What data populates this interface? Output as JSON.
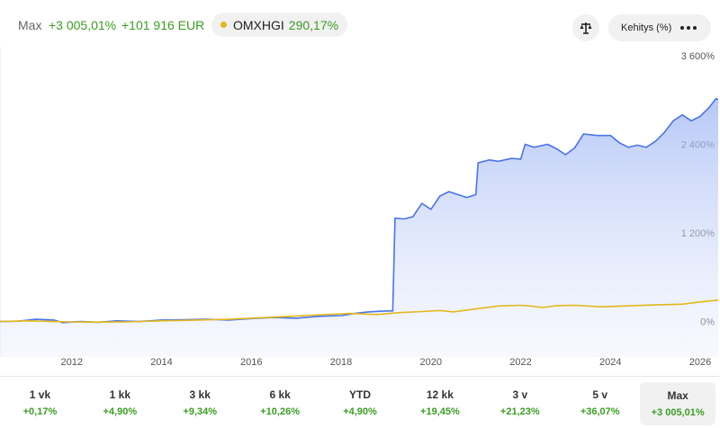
{
  "header": {
    "period_label": "Max",
    "return_pct": "+3 005,01%",
    "return_eur": "+101 916 EUR",
    "benchmark": {
      "name": "OMXHGI",
      "value": "290,17%",
      "color": "#e3b81c"
    },
    "scale_icon": "balance-scale-icon",
    "mode_label": "Kehitys (%)",
    "more_icon": "more-dots-icon"
  },
  "chart_data": {
    "type": "line",
    "ylabels": [
      "3 600%",
      "2 400%",
      "1 200%",
      "0%"
    ],
    "xlabels": [
      "2012",
      "2014",
      "2016",
      "2018",
      "2020",
      "2022",
      "2024",
      "2026"
    ],
    "ylim": [
      -480,
      3600
    ],
    "xlim": [
      2010.4,
      2026.4
    ],
    "grid": false,
    "series": [
      {
        "name": "portfolio",
        "color": "#4a74e8",
        "fill": true,
        "points": [
          [
            2010.4,
            0
          ],
          [
            2010.8,
            5
          ],
          [
            2011.2,
            30
          ],
          [
            2011.6,
            20
          ],
          [
            2011.8,
            -15
          ],
          [
            2012.2,
            0
          ],
          [
            2012.6,
            -10
          ],
          [
            2013.0,
            10
          ],
          [
            2013.5,
            0
          ],
          [
            2014.0,
            20
          ],
          [
            2014.5,
            25
          ],
          [
            2015.0,
            30
          ],
          [
            2015.5,
            20
          ],
          [
            2016.0,
            40
          ],
          [
            2016.5,
            55
          ],
          [
            2017.0,
            45
          ],
          [
            2017.5,
            70
          ],
          [
            2018.0,
            80
          ],
          [
            2018.3,
            110
          ],
          [
            2018.6,
            130
          ],
          [
            2018.9,
            140
          ],
          [
            2019.15,
            145
          ],
          [
            2019.2,
            1400
          ],
          [
            2019.4,
            1390
          ],
          [
            2019.6,
            1420
          ],
          [
            2019.8,
            1600
          ],
          [
            2020.0,
            1520
          ],
          [
            2020.2,
            1700
          ],
          [
            2020.4,
            1760
          ],
          [
            2020.6,
            1720
          ],
          [
            2020.8,
            1680
          ],
          [
            2021.0,
            1720
          ],
          [
            2021.05,
            2150
          ],
          [
            2021.3,
            2190
          ],
          [
            2021.5,
            2170
          ],
          [
            2021.8,
            2210
          ],
          [
            2022.0,
            2200
          ],
          [
            2022.1,
            2400
          ],
          [
            2022.3,
            2360
          ],
          [
            2022.6,
            2400
          ],
          [
            2022.8,
            2340
          ],
          [
            2023.0,
            2260
          ],
          [
            2023.2,
            2350
          ],
          [
            2023.4,
            2540
          ],
          [
            2023.7,
            2520
          ],
          [
            2024.0,
            2520
          ],
          [
            2024.2,
            2420
          ],
          [
            2024.4,
            2360
          ],
          [
            2024.6,
            2390
          ],
          [
            2024.8,
            2360
          ],
          [
            2025.0,
            2440
          ],
          [
            2025.2,
            2560
          ],
          [
            2025.4,
            2720
          ],
          [
            2025.6,
            2800
          ],
          [
            2025.8,
            2720
          ],
          [
            2026.0,
            2780
          ],
          [
            2026.2,
            2900
          ],
          [
            2026.35,
            3020
          ],
          [
            2026.4,
            3005
          ]
        ]
      },
      {
        "name": "OMXHGI",
        "color": "#e3b81c",
        "fill": false,
        "points": [
          [
            2010.4,
            0
          ],
          [
            2011.0,
            10
          ],
          [
            2011.6,
            0
          ],
          [
            2012.0,
            -5
          ],
          [
            2012.6,
            -8
          ],
          [
            2013.2,
            -5
          ],
          [
            2014.0,
            10
          ],
          [
            2014.8,
            20
          ],
          [
            2015.5,
            30
          ],
          [
            2016.5,
            60
          ],
          [
            2017.5,
            90
          ],
          [
            2018.2,
            110
          ],
          [
            2018.8,
            95
          ],
          [
            2019.3,
            120
          ],
          [
            2019.8,
            135
          ],
          [
            2020.2,
            150
          ],
          [
            2020.5,
            130
          ],
          [
            2021.0,
            170
          ],
          [
            2021.5,
            210
          ],
          [
            2022.0,
            220
          ],
          [
            2022.2,
            210
          ],
          [
            2022.5,
            190
          ],
          [
            2022.8,
            215
          ],
          [
            2023.2,
            220
          ],
          [
            2023.8,
            200
          ],
          [
            2024.5,
            215
          ],
          [
            2025.0,
            225
          ],
          [
            2025.6,
            235
          ],
          [
            2026.0,
            265
          ],
          [
            2026.4,
            290
          ]
        ]
      }
    ]
  },
  "tabs": [
    {
      "label": "1 vk",
      "value": "+0,17%"
    },
    {
      "label": "1 kk",
      "value": "+4,90%"
    },
    {
      "label": "3 kk",
      "value": "+9,34%"
    },
    {
      "label": "6 kk",
      "value": "+10,26%"
    },
    {
      "label": "YTD",
      "value": "+4,90%"
    },
    {
      "label": "12 kk",
      "value": "+19,45%"
    },
    {
      "label": "3 v",
      "value": "+21,23%"
    },
    {
      "label": "5 v",
      "value": "+36,07%"
    },
    {
      "label": "Max",
      "value": "+3 005,01%"
    }
  ]
}
